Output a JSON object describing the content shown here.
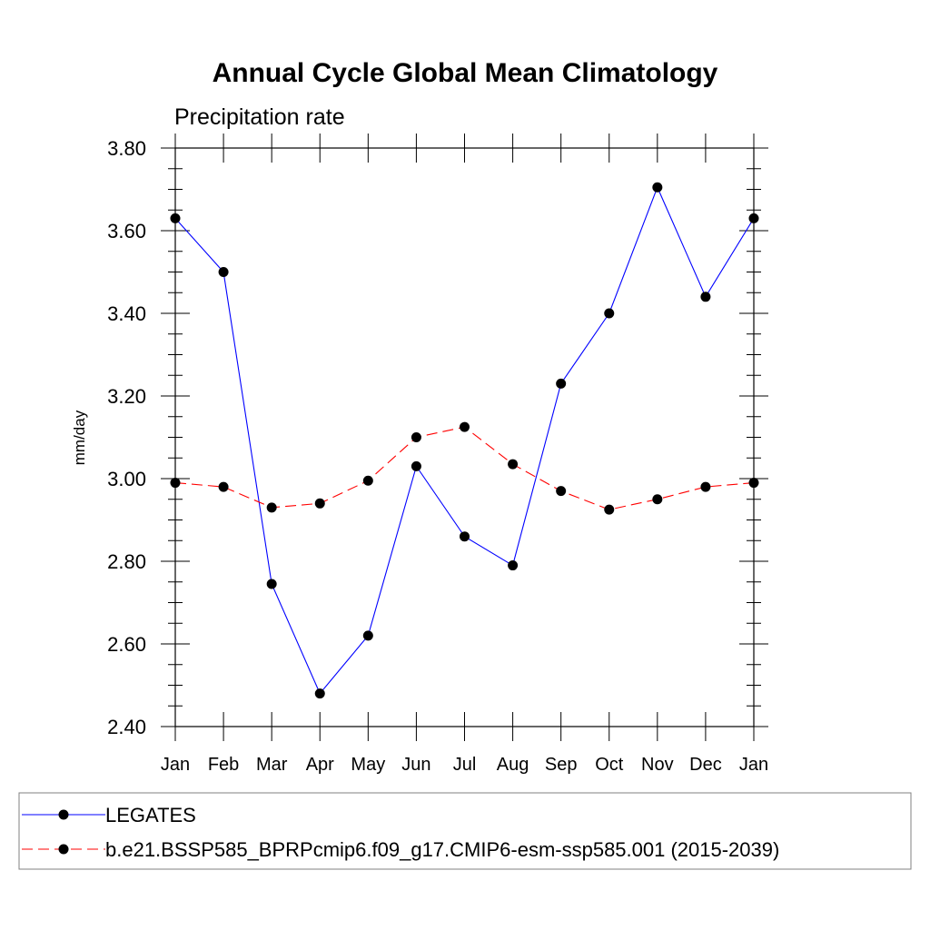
{
  "chart_data": {
    "type": "line",
    "title": "Annual Cycle Global Mean Climatology",
    "subtitle": "Precipitation rate",
    "xlabel": "",
    "ylabel": "mm/day",
    "categories": [
      "Jan",
      "Feb",
      "Mar",
      "Apr",
      "May",
      "Jun",
      "Jul",
      "Aug",
      "Sep",
      "Oct",
      "Nov",
      "Dec",
      "Jan"
    ],
    "ylim": [
      2.4,
      3.8
    ],
    "yticks": [
      "2.40",
      "2.60",
      "2.80",
      "3.00",
      "3.20",
      "3.40",
      "3.60",
      "3.80"
    ],
    "grid": false,
    "legend_position": "bottom",
    "series": [
      {
        "name": "LEGATES",
        "color": "#0000ff",
        "dash": "solid",
        "marker": "filled-circle",
        "values": [
          3.63,
          3.5,
          2.745,
          2.48,
          2.62,
          3.03,
          2.86,
          2.79,
          3.23,
          3.4,
          3.705,
          3.44,
          3.63
        ]
      },
      {
        "name": "b.e21.BSSP585_BPRPcmip6.f09_g17.CMIP6-esm-ssp585.001 (2015-2039)",
        "color": "#ff0000",
        "dash": "dashed",
        "marker": "filled-circle",
        "values": [
          2.99,
          2.98,
          2.93,
          2.94,
          2.995,
          3.1,
          3.125,
          3.035,
          2.97,
          2.925,
          2.95,
          2.98,
          2.99
        ]
      }
    ]
  }
}
